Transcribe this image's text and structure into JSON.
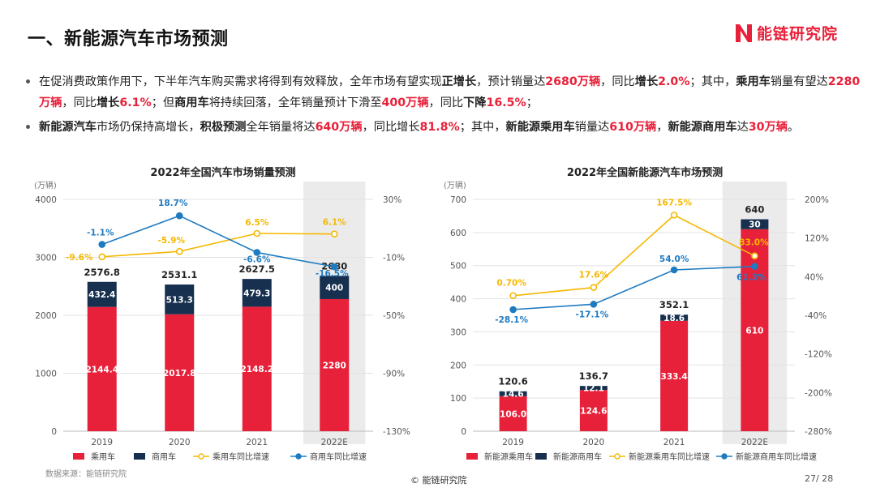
{
  "page": {
    "title": "一、新能源汽车市场预测",
    "logo_text": "能链研究院",
    "source": "数据来源：能链研究院",
    "copyright": "© 能链研究院",
    "page_number": "27/ 28"
  },
  "bullets": [
    [
      {
        "t": "在促消费政策作用下，下半年汽车购买需求将得到有效释放，全年市场有望实现"
      },
      {
        "t": "正增长",
        "s": "b"
      },
      {
        "t": "，预计销量达"
      },
      {
        "t": "2680万辆",
        "s": "r"
      },
      {
        "t": "，同比"
      },
      {
        "t": "增长",
        "s": "b"
      },
      {
        "t": "2.0%",
        "s": "r"
      },
      {
        "t": "；其中，"
      },
      {
        "t": "乘用车",
        "s": "b"
      },
      {
        "t": "销量有望达"
      },
      {
        "t": "2280万辆",
        "s": "r"
      },
      {
        "t": "，同比"
      },
      {
        "t": "增长",
        "s": "b"
      },
      {
        "t": "6.1%",
        "s": "r"
      },
      {
        "t": "；但"
      },
      {
        "t": "商用车",
        "s": "b"
      },
      {
        "t": "将持续回落，全年销量预计下滑至"
      },
      {
        "t": "400万辆",
        "s": "r"
      },
      {
        "t": "，同比"
      },
      {
        "t": "下降",
        "s": "b"
      },
      {
        "t": "16.5%",
        "s": "r"
      },
      {
        "t": "；"
      }
    ],
    [
      {
        "t": "新能源汽车",
        "s": "b"
      },
      {
        "t": "市场仍保持高增长，"
      },
      {
        "t": "积极预测",
        "s": "b"
      },
      {
        "t": "全年销量将达"
      },
      {
        "t": "640万辆",
        "s": "r"
      },
      {
        "t": "，同比增长"
      },
      {
        "t": "81.8%",
        "s": "r"
      },
      {
        "t": "；其中，"
      },
      {
        "t": "新能源乘用车",
        "s": "b"
      },
      {
        "t": "销量达"
      },
      {
        "t": "610万辆",
        "s": "r"
      },
      {
        "t": "，"
      },
      {
        "t": "新能源商用车",
        "s": "b"
      },
      {
        "t": "达"
      },
      {
        "t": "30万辆",
        "s": "r"
      },
      {
        "t": "。"
      }
    ]
  ],
  "colors": {
    "red": "#e8213a",
    "navy": "#17304f",
    "yellow": "#f5b800",
    "blue": "#1f7bc1",
    "forecast_band": "#ebebeb"
  },
  "chart_data": [
    {
      "type": "bar",
      "stacked": true,
      "title": "2022年全国汽车市场销量预测",
      "unit_label": "(万辆)",
      "categories": [
        "2019",
        "2020",
        "2021",
        "2022E"
      ],
      "forecast_category": "2022E",
      "ylim": [
        0,
        4000
      ],
      "yticks": [
        0,
        1000,
        2000,
        3000,
        4000
      ],
      "y2lim": [
        -130,
        30
      ],
      "y2ticks": [
        "-130%",
        "-90%",
        "-50%",
        "-10%",
        "30%"
      ],
      "y2tick_values": [
        -130,
        -90,
        -50,
        -10,
        30
      ],
      "series": [
        {
          "name": "乘用车",
          "kind": "bar",
          "values": [
            2144.4,
            2017.8,
            2148.2,
            2280
          ],
          "labels": [
            "2144.4",
            "2017.8",
            "2148.2",
            "2280"
          ]
        },
        {
          "name": "商用车",
          "kind": "bar",
          "values": [
            432.4,
            513.3,
            479.3,
            400
          ],
          "labels": [
            "432.4",
            "513.3",
            "479.3",
            "400"
          ]
        },
        {
          "name": "乘用车同比增速",
          "kind": "line",
          "axis": "right",
          "values": [
            -9.6,
            -5.9,
            6.5,
            6.1
          ],
          "labels": [
            "-9.6%",
            "-5.9%",
            "6.5%",
            "6.1%"
          ]
        },
        {
          "name": "商用车同比增速",
          "kind": "line",
          "axis": "right",
          "values": [
            -1.1,
            18.7,
            -6.6,
            -16.5
          ],
          "labels": [
            "-1.1%",
            "18.7%",
            "-6.6%",
            "-16.5%"
          ]
        }
      ],
      "totals": [
        "2576.8",
        "2531.1",
        "2627.5",
        "2680"
      ]
    },
    {
      "type": "bar",
      "stacked": true,
      "title": "2022年全国新能源汽车市场预测",
      "unit_label": "(万辆)",
      "categories": [
        "2019",
        "2020",
        "2021",
        "2022E"
      ],
      "forecast_category": "2022E",
      "ylim": [
        0,
        700
      ],
      "yticks": [
        0,
        100,
        200,
        300,
        400,
        500,
        600,
        700
      ],
      "y2lim": [
        -280,
        200
      ],
      "y2ticks": [
        "-280%",
        "-200%",
        "-120%",
        "-40%",
        "40%",
        "120%",
        "200%"
      ],
      "y2tick_values": [
        -280,
        -200,
        -120,
        -40,
        40,
        120,
        200
      ],
      "series": [
        {
          "name": "新能源乘用车",
          "kind": "bar",
          "values": [
            106.0,
            124.6,
            333.4,
            610
          ],
          "labels": [
            "106.0",
            "124.6",
            "333.4",
            "610"
          ]
        },
        {
          "name": "新能源商用车",
          "kind": "bar",
          "values": [
            14.6,
            12.1,
            18.6,
            30
          ],
          "labels": [
            "14.6",
            "12.1",
            "18.6",
            "30"
          ]
        },
        {
          "name": "新能源乘用车同比增速",
          "kind": "line",
          "axis": "right",
          "values": [
            0.7,
            17.6,
            167.5,
            83.0
          ],
          "labels": [
            "0.70%",
            "17.6%",
            "167.5%",
            "83.0%"
          ]
        },
        {
          "name": "新能源商用车同比增速",
          "kind": "line",
          "axis": "right",
          "values": [
            -28.1,
            -17.1,
            54.0,
            61.3
          ],
          "labels": [
            "-28.1%",
            "-17.1%",
            "54.0%",
            "61.3%"
          ]
        }
      ],
      "totals": [
        "120.6",
        "136.7",
        "352.1",
        "640"
      ]
    }
  ]
}
